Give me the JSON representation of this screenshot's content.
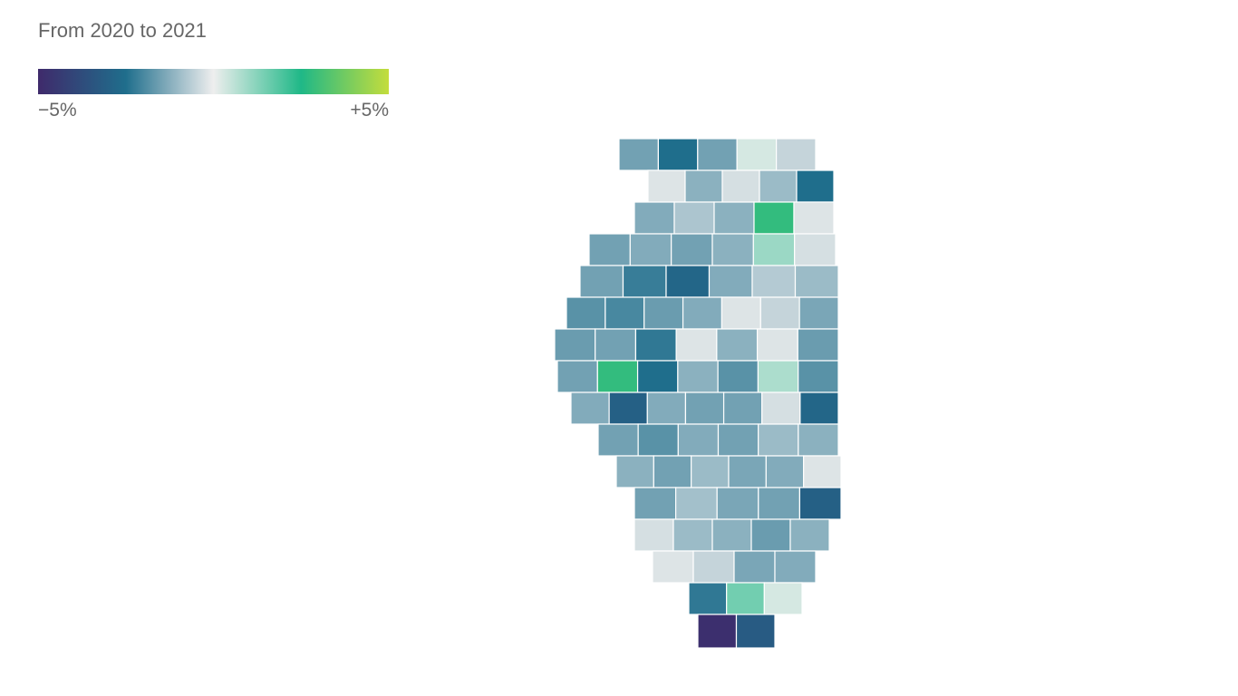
{
  "chart_data": {
    "type": "choropleth",
    "title": "From 2020 to 2021",
    "colorscale": [
      "#3f2a6b",
      "#1f6e8c",
      "#eeeeee",
      "#1fb887",
      "#c4dd3c"
    ],
    "clim": [
      -5,
      5
    ],
    "cticks": [
      {
        "value": -5,
        "label": "−5%"
      },
      {
        "value": 5,
        "label": "+5%"
      }
    ],
    "values": [
      -1.5,
      -2.5,
      -1.5,
      0.3,
      -0.5,
      -0.2,
      -1.2,
      -0.3,
      -1,
      -2.5,
      -1.3,
      -0.8,
      -1.2,
      2.8,
      -0.2,
      -1.5,
      -1.3,
      -1.5,
      -1.2,
      1,
      -0.3,
      -1.5,
      -2.2,
      -2.8,
      -1.3,
      -0.7,
      -1,
      -1.8,
      -2,
      -1.6,
      -1.3,
      -0.2,
      -0.5,
      -1.4,
      -1.6,
      -1.5,
      -2.3,
      -0.2,
      -1.2,
      -0.2,
      -1.6,
      -1.5,
      2.8,
      -2.5,
      -1.2,
      -1.8,
      0.8,
      -1.8,
      -1.3,
      -3,
      -1.3,
      -1.5,
      -1.5,
      -0.3,
      -2.8,
      -1.5,
      -1.8,
      -1.3,
      -1.5,
      -1,
      -1.2,
      -1.2,
      -1.5,
      -1,
      -1.4,
      -1.3,
      -0.2,
      -1.5,
      -0.9,
      -1.4,
      -1.5,
      -3,
      -0.3,
      -1,
      -1.2,
      -1.6,
      -1.2,
      -0.2,
      -0.5,
      -1.4,
      -1.3,
      -2.3,
      1.5,
      0.3,
      -4.8,
      -3.2
    ]
  }
}
